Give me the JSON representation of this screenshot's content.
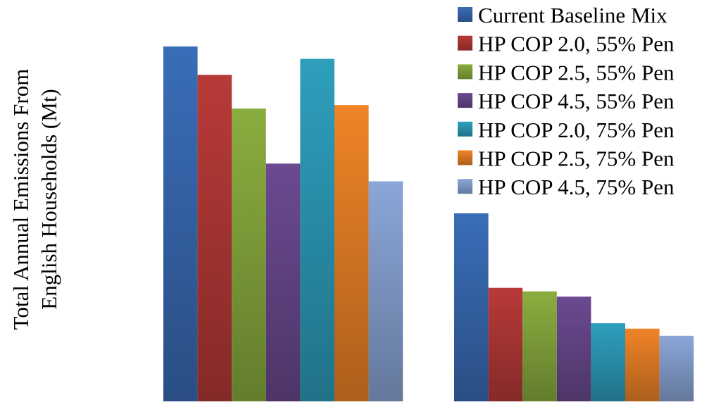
{
  "chart_data": {
    "type": "bar",
    "ylabel_line1": "Total Annual Emissions From",
    "ylabel_line2": "English Households (Mt)",
    "legend_position": "top-right",
    "grid": false,
    "ylim": [
      0,
      100
    ],
    "groups": [
      {
        "values": [
          100,
          92,
          82.5,
          67,
          96.5,
          83.5,
          62
        ]
      },
      {
        "values": [
          53,
          32,
          31,
          29.5,
          22,
          20.5,
          18.5
        ]
      }
    ],
    "series": [
      {
        "name": "Current Baseline Mix",
        "color": "#3a6db8"
      },
      {
        "name": "HP COP 2.0, 55% Pen",
        "color": "#b83a38"
      },
      {
        "name": "HP COP 2.5, 55% Pen",
        "color": "#8aad3f"
      },
      {
        "name": "HP COP 4.5, 55% Pen",
        "color": "#6b4a90"
      },
      {
        "name": "HP COP 2.0, 75% Pen",
        "color": "#2e9fbd"
      },
      {
        "name": "HP COP 2.5, 75% Pen",
        "color": "#ef8427"
      },
      {
        "name": "HP COP 4.5, 75% Pen",
        "color": "#8ba6d8"
      }
    ]
  }
}
